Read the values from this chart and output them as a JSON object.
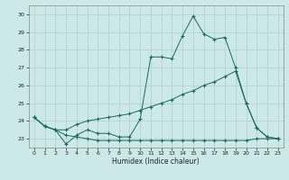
{
  "title": "",
  "xlabel": "Humidex (Indice chaleur)",
  "ylabel": "",
  "bg_color": "#cde8e8",
  "line_color": "#1a6b5a",
  "grid_color": "#aed0d0",
  "xlim": [
    -0.5,
    23.5
  ],
  "ylim": [
    22.5,
    30.5
  ],
  "yticks": [
    23,
    24,
    25,
    26,
    27,
    28,
    29,
    30
  ],
  "xticks": [
    0,
    1,
    2,
    3,
    4,
    5,
    6,
    7,
    8,
    9,
    10,
    11,
    12,
    13,
    14,
    15,
    16,
    17,
    18,
    19,
    20,
    21,
    22,
    23
  ],
  "series1_x": [
    0,
    1,
    2,
    3,
    4,
    5,
    6,
    7,
    8,
    9,
    10,
    11,
    12,
    13,
    14,
    15,
    16,
    17,
    18,
    19,
    20,
    21,
    22,
    23
  ],
  "series1_y": [
    24.2,
    23.7,
    23.5,
    22.7,
    23.2,
    23.5,
    23.3,
    23.3,
    23.1,
    23.1,
    24.1,
    27.6,
    27.6,
    27.5,
    28.8,
    29.9,
    28.9,
    28.6,
    28.7,
    27.0,
    25.0,
    23.6,
    23.1,
    23.0
  ],
  "series2_x": [
    0,
    1,
    2,
    3,
    4,
    5,
    6,
    7,
    8,
    9,
    10,
    11,
    12,
    13,
    14,
    15,
    16,
    17,
    18,
    19,
    20,
    21,
    22,
    23
  ],
  "series2_y": [
    24.2,
    23.7,
    23.5,
    23.5,
    23.8,
    24.0,
    24.1,
    24.2,
    24.3,
    24.4,
    24.6,
    24.8,
    25.0,
    25.2,
    25.5,
    25.7,
    26.0,
    26.2,
    26.5,
    26.8,
    25.0,
    23.6,
    23.1,
    23.0
  ],
  "series3_x": [
    0,
    1,
    2,
    3,
    4,
    5,
    6,
    7,
    8,
    9,
    10,
    11,
    12,
    13,
    14,
    15,
    16,
    17,
    18,
    19,
    20,
    21,
    22,
    23
  ],
  "series3_y": [
    24.2,
    23.7,
    23.5,
    23.2,
    23.1,
    23.0,
    22.9,
    22.9,
    22.9,
    22.9,
    22.9,
    22.9,
    22.9,
    22.9,
    22.9,
    22.9,
    22.9,
    22.9,
    22.9,
    22.9,
    22.9,
    23.0,
    23.0,
    23.0
  ]
}
